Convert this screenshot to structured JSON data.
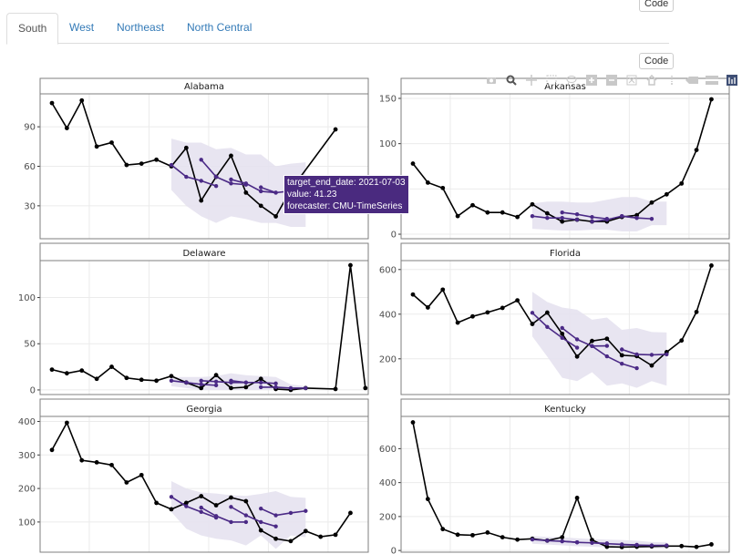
{
  "tabs": [
    {
      "label": "South",
      "active": true
    },
    {
      "label": "West",
      "active": false
    },
    {
      "label": "Northeast",
      "active": false
    },
    {
      "label": "North Central",
      "active": false
    }
  ],
  "code_button_label": "Code",
  "modebar": [
    "camera-icon",
    "zoom-icon",
    "pan-icon",
    "box-select-icon",
    "lasso-icon",
    "zoom-in-icon",
    "zoom-out-icon",
    "autoscale-icon",
    "reset-axes-icon",
    "spike-lines-icon",
    "hover-closest-icon",
    "hover-compare-icon",
    "plotly-logo-icon"
  ],
  "tooltip": {
    "line1": "target_end_date: 2021-07-03",
    "line2": "value:  41.23",
    "line3": "forecaster: CMU-TimeSeries"
  },
  "colors": {
    "observed": "#000000",
    "forecast": "#4b2a86",
    "band": "#e6e2f0",
    "grid": "#ebebeb",
    "strip_border": "#7f7f7f"
  },
  "chart_data": [
    {
      "type": "line",
      "title": "Alabama",
      "ylim": [
        5,
        115
      ],
      "yticks": [
        30,
        60,
        90
      ],
      "observed": [
        108,
        89,
        110,
        75,
        78,
        61,
        62,
        65,
        60,
        74,
        34,
        52,
        68,
        40,
        30,
        22,
        42,
        null,
        null,
        88
      ],
      "forecasts": [
        {
          "x0": 8,
          "values": [
            61,
            52,
            49,
            45
          ]
        },
        {
          "x0": 10,
          "values": [
            65,
            52,
            47,
            46
          ]
        },
        {
          "x0": 12,
          "values": [
            50,
            47,
            41,
            40
          ]
        },
        {
          "x0": 14,
          "values": [
            44,
            40,
            41.23
          ]
        }
      ],
      "band": {
        "x": [
          8,
          9,
          10,
          11,
          12,
          13,
          14,
          15,
          16,
          17
        ],
        "lo": [
          42,
          30,
          22,
          17,
          22,
          20,
          17,
          17,
          14,
          14
        ],
        "hi": [
          81,
          78,
          78,
          73,
          74,
          69,
          69,
          60,
          62,
          63
        ]
      }
    },
    {
      "type": "line",
      "title": "Arkansas",
      "ylim": [
        -5,
        155
      ],
      "yticks": [
        0,
        50,
        100,
        150
      ],
      "observed": [
        78,
        57,
        51,
        20,
        32,
        24,
        24,
        19,
        33,
        23,
        14,
        16,
        14,
        14,
        19,
        21,
        35,
        44,
        56,
        93,
        149
      ],
      "forecasts": [
        {
          "x0": 8,
          "values": [
            20,
            18,
            18,
            16
          ]
        },
        {
          "x0": 10,
          "values": [
            24,
            22,
            19,
            17
          ]
        },
        {
          "x0": 12,
          "values": [
            14,
            16,
            20,
            18
          ]
        },
        {
          "x0": 14,
          "values": [
            20,
            18,
            17
          ]
        }
      ],
      "band": {
        "x": [
          8,
          9,
          10,
          11,
          12,
          13,
          14,
          15,
          16,
          17
        ],
        "lo": [
          6,
          5,
          4,
          4,
          5,
          5,
          3,
          3,
          10,
          10
        ],
        "hi": [
          34,
          36,
          36,
          35,
          35,
          38,
          41,
          41,
          36,
          36
        ]
      }
    },
    {
      "type": "line",
      "title": "Delaware",
      "ylim": [
        -5,
        140
      ],
      "yticks": [
        0,
        50,
        100
      ],
      "observed": [
        22,
        18,
        21,
        12,
        25,
        13,
        11,
        10,
        15,
        8,
        2,
        16,
        2,
        3,
        12,
        1,
        0,
        2,
        null,
        1,
        135,
        2
      ],
      "forecasts": [
        {
          "x0": 8,
          "values": [
            10,
            8,
            6,
            5
          ]
        },
        {
          "x0": 10,
          "values": [
            10,
            9,
            8,
            8
          ]
        },
        {
          "x0": 12,
          "values": [
            10,
            8,
            8,
            7
          ]
        },
        {
          "x0": 14,
          "values": [
            3,
            3,
            2,
            2
          ]
        }
      ],
      "band": {
        "x": [
          8,
          9,
          10,
          11,
          12,
          13,
          14,
          15,
          16,
          17
        ],
        "lo": [
          4,
          2,
          0,
          0,
          0,
          0,
          0,
          0,
          0,
          0
        ],
        "hi": [
          14,
          14,
          14,
          15,
          18,
          16,
          15,
          14,
          6,
          4
        ]
      }
    },
    {
      "type": "line",
      "title": "Florida",
      "ylim": [
        40,
        640
      ],
      "yticks": [
        200,
        400,
        600
      ],
      "observed": [
        488,
        430,
        510,
        362,
        390,
        408,
        428,
        462,
        356,
        407,
        312,
        210,
        280,
        290,
        216,
        212,
        170,
        230,
        282,
        410,
        618
      ],
      "forecasts": [
        {
          "x0": 8,
          "values": [
            406,
            343,
            294,
            250
          ]
        },
        {
          "x0": 10,
          "values": [
            338,
            287,
            257,
            258
          ]
        },
        {
          "x0": 12,
          "values": [
            257,
            211,
            178,
            158
          ]
        },
        {
          "x0": 14,
          "values": [
            242,
            220,
            218,
            220
          ]
        }
      ],
      "band": {
        "x": [
          8,
          9,
          10,
          11,
          12,
          13,
          14,
          15,
          16,
          17
        ],
        "lo": [
          300,
          210,
          115,
          100,
          140,
          80,
          90,
          70,
          100,
          80
        ],
        "hi": [
          500,
          455,
          430,
          420,
          375,
          385,
          330,
          338,
          320,
          318
        ]
      }
    },
    {
      "type": "line",
      "title": "Georgia",
      "ylim": [
        10,
        415
      ],
      "yticks": [
        100,
        200,
        300,
        400
      ],
      "observed": [
        315,
        396,
        284,
        278,
        270,
        218,
        240,
        157,
        138,
        157,
        177,
        150,
        173,
        162,
        75,
        50,
        43,
        73,
        56,
        62,
        127
      ],
      "forecasts": [
        {
          "x0": 8,
          "values": [
            175,
            147,
            130,
            113
          ]
        },
        {
          "x0": 10,
          "values": [
            143,
            118,
            100,
            100
          ]
        },
        {
          "x0": 12,
          "values": [
            145,
            120,
            100,
            87
          ]
        },
        {
          "x0": 14,
          "values": [
            140,
            120,
            127,
            133
          ]
        }
      ],
      "band": {
        "x": [
          8,
          9,
          10,
          11,
          12,
          13,
          14,
          15,
          16,
          17
        ],
        "lo": [
          130,
          80,
          60,
          50,
          45,
          30,
          60,
          20,
          60,
          55
        ],
        "hi": [
          222,
          200,
          188,
          185,
          180,
          178,
          184,
          192,
          175,
          172
        ]
      }
    },
    {
      "type": "line",
      "title": "Kentucky",
      "ylim": [
        -10,
        790
      ],
      "yticks": [
        0,
        200,
        400,
        600
      ],
      "observed": [
        755,
        303,
        126,
        93,
        90,
        106,
        78,
        64,
        69,
        58,
        78,
        310,
        62,
        22,
        20,
        22,
        24,
        26,
        26,
        21,
        36
      ],
      "forecasts": [
        {
          "x0": 8,
          "values": [
            65,
            58,
            54,
            48
          ]
        },
        {
          "x0": 10,
          "values": [
            55,
            48,
            45,
            42
          ]
        },
        {
          "x0": 12,
          "values": [
            45,
            40,
            36,
            33
          ]
        },
        {
          "x0": 14,
          "values": [
            34,
            32,
            30,
            30
          ]
        }
      ],
      "band": {
        "x": [
          8,
          9,
          10,
          11,
          12,
          13,
          14,
          15,
          16,
          17
        ],
        "lo": [
          40,
          35,
          30,
          25,
          22,
          18,
          16,
          14,
          12,
          12
        ],
        "hi": [
          85,
          80,
          78,
          72,
          68,
          64,
          62,
          58,
          50,
          48
        ]
      }
    }
  ]
}
